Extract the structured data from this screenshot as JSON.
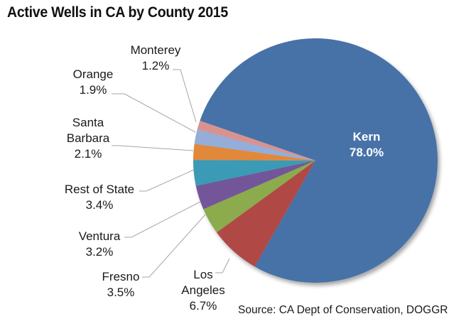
{
  "chart_data": {
    "type": "pie",
    "title": "Active Wells in CA by County 2015",
    "source": "Source: CA Dept of Conservation,  DOGGR",
    "slices": [
      {
        "name": "Kern",
        "label_lines": [
          "Kern"
        ],
        "value": 78.0,
        "value_label": "78.0%",
        "color": "#4672A8",
        "label_position": "inside"
      },
      {
        "name": "Los Angeles",
        "label_lines": [
          "Los",
          "Angeles"
        ],
        "value": 6.7,
        "value_label": "6.7%",
        "color": "#B04A45",
        "label_position": "outside"
      },
      {
        "name": "Fresno",
        "label_lines": [
          "Fresno"
        ],
        "value": 3.5,
        "value_label": "3.5%",
        "color": "#8CAB4E",
        "label_position": "outside"
      },
      {
        "name": "Ventura",
        "label_lines": [
          "Ventura"
        ],
        "value": 3.2,
        "value_label": "3.2%",
        "color": "#73579A",
        "label_position": "outside"
      },
      {
        "name": "Rest of State",
        "label_lines": [
          "Rest of State"
        ],
        "value": 3.4,
        "value_label": "3.4%",
        "color": "#3A9AB5",
        "label_position": "outside"
      },
      {
        "name": "Santa Barbara",
        "label_lines": [
          "Santa",
          "Barbara"
        ],
        "value": 2.1,
        "value_label": "2.1%",
        "color": "#E1883A",
        "label_position": "outside"
      },
      {
        "name": "Orange",
        "label_lines": [
          "Orange"
        ],
        "value": 1.9,
        "value_label": "1.9%",
        "color": "#94ADD9",
        "label_position": "outside"
      },
      {
        "name": "Monterey",
        "label_lines": [
          "Monterey"
        ],
        "value": 1.2,
        "value_label": "1.2%",
        "color": "#D89391",
        "label_position": "outside"
      }
    ],
    "direction": "clockwise",
    "legend": "none"
  }
}
